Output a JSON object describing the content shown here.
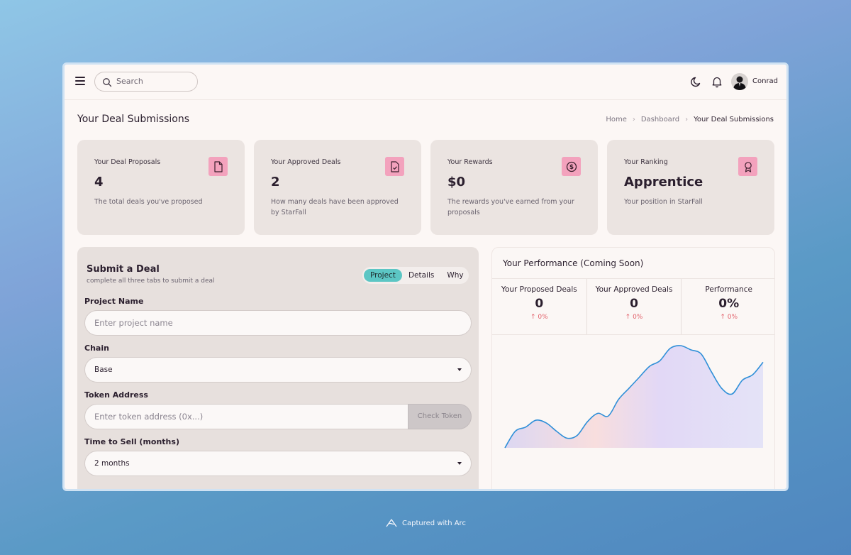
{
  "header": {
    "search_placeholder": "Search",
    "username": "Conrad",
    "icons": [
      "menu-icon",
      "search-icon",
      "moon-icon",
      "bell-icon"
    ]
  },
  "page": {
    "title": "Your Deal Submissions",
    "breadcrumb": [
      "Home",
      "Dashboard",
      "Your Deal Submissions"
    ]
  },
  "stats": [
    {
      "label": "Your Deal Proposals",
      "value": "4",
      "desc": "The total deals you've proposed",
      "icon": "document-icon"
    },
    {
      "label": "Your Approved Deals",
      "value": "2",
      "desc": "How many deals have been approved by StarFall",
      "icon": "document-check-icon"
    },
    {
      "label": "Your Rewards",
      "value": "$0",
      "desc": "The rewards you've earned from your proposals",
      "icon": "dollar-coin-icon"
    },
    {
      "label": "Your Ranking",
      "value": "Apprentice",
      "desc": "Your position in StarFall",
      "icon": "award-icon"
    }
  ],
  "form": {
    "title": "Submit a Deal",
    "subtitle": "complete all three tabs to submit a deal",
    "tabs": [
      "Project",
      "Details",
      "Why"
    ],
    "active_tab": "Project",
    "project_name_label": "Project Name",
    "project_name_placeholder": "Enter project name",
    "chain_label": "Chain",
    "chain_value": "Base",
    "token_label": "Token Address",
    "token_placeholder": "Enter token address (0x...)",
    "check_token": "Check Token",
    "time_label": "Time to Sell (months)",
    "time_value": "2 months"
  },
  "performance": {
    "title": "Your Performance (Coming Soon)",
    "stats": [
      {
        "label": "Your Proposed Deals",
        "value": "0",
        "change": "0%"
      },
      {
        "label": "Your Approved Deals",
        "value": "0",
        "change": "0%"
      },
      {
        "label": "Performance",
        "value": "0%",
        "change": "0%"
      }
    ],
    "sparkline": [
      0,
      24,
      30,
      40,
      36,
      24,
      14,
      18,
      38,
      50,
      46,
      70,
      86,
      102,
      118,
      126,
      144,
      148,
      142,
      136,
      110,
      86,
      78,
      98,
      106,
      124
    ]
  },
  "colors": {
    "accent_tab": "#5cc6c4",
    "badge": "#f3a2bd",
    "change_red": "#e2606a",
    "line": "#2e8fd8"
  },
  "footer": {
    "capture_text": "Captured with Arc"
  }
}
